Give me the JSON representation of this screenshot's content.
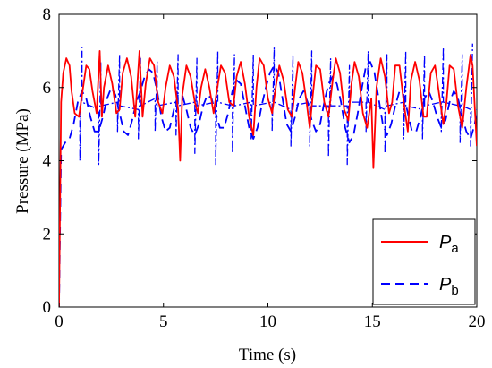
{
  "chart_data": {
    "type": "line",
    "xlabel": "Time (s)",
    "ylabel": "Pressure (MPa)",
    "xlim": [
      0,
      20
    ],
    "ylim": [
      0,
      8
    ],
    "xticks": [
      "0",
      "5",
      "10",
      "15",
      "20"
    ],
    "yticks": [
      "0",
      "2",
      "4",
      "6",
      "8"
    ],
    "grid": false,
    "legend_position": "bottom-right",
    "series": [
      {
        "name": "P",
        "subscript": "a",
        "color": "#ff0000",
        "style": "solid",
        "x": [
          0,
          0.1,
          0.2,
          0.35,
          0.5,
          0.6,
          0.75,
          0.95,
          1.15,
          1.3,
          1.45,
          1.6,
          1.8,
          1.95,
          2.05,
          2.15,
          2.35,
          2.55,
          2.75,
          2.9,
          3.05,
          3.25,
          3.45,
          3.65,
          3.85,
          4.0,
          4.15,
          4.35,
          4.55,
          4.75,
          4.95,
          5.1,
          5.3,
          5.5,
          5.7,
          5.8,
          5.9,
          6.1,
          6.3,
          6.5,
          6.65,
          6.8,
          7.0,
          7.2,
          7.4,
          7.55,
          7.75,
          7.95,
          8.15,
          8.35,
          8.5,
          8.7,
          8.9,
          9.1,
          9.3,
          9.45,
          9.6,
          9.8,
          10.0,
          10.2,
          10.4,
          10.55,
          10.75,
          10.95,
          11.15,
          11.3,
          11.45,
          11.65,
          11.85,
          12.0,
          12.15,
          12.3,
          12.5,
          12.7,
          12.9,
          13.1,
          13.25,
          13.45,
          13.65,
          13.85,
          14.0,
          14.15,
          14.35,
          14.55,
          14.75,
          14.95,
          15.05,
          15.2,
          15.4,
          15.6,
          15.8,
          15.95,
          16.1,
          16.3,
          16.5,
          16.7,
          16.85,
          17.05,
          17.25,
          17.45,
          17.6,
          17.8,
          18.0,
          18.2,
          18.4,
          18.55,
          18.7,
          18.9,
          19.1,
          19.3,
          19.5,
          19.7,
          19.8,
          20.0
        ],
        "values": [
          0,
          5.6,
          6.4,
          6.8,
          6.6,
          5.9,
          5.3,
          5.2,
          6.0,
          6.6,
          6.5,
          5.9,
          5.3,
          7.0,
          5.2,
          6.0,
          6.6,
          6.1,
          5.3,
          5.4,
          6.4,
          6.8,
          6.3,
          5.2,
          7.0,
          5.2,
          6.1,
          6.8,
          6.6,
          5.6,
          5.3,
          6.0,
          6.6,
          6.3,
          5.4,
          4.0,
          5.8,
          6.6,
          6.3,
          5.6,
          5.3,
          6.0,
          6.5,
          6.0,
          5.3,
          5.9,
          6.6,
          6.4,
          5.6,
          5.5,
          6.3,
          6.7,
          6.1,
          5.2,
          4.7,
          6.0,
          6.8,
          6.6,
          5.7,
          5.3,
          6.1,
          6.6,
          6.2,
          5.4,
          5.2,
          6.0,
          6.7,
          6.4,
          5.6,
          4.9,
          5.8,
          6.6,
          6.5,
          5.6,
          5.2,
          6.2,
          6.8,
          6.4,
          5.4,
          5.1,
          6.1,
          6.7,
          6.3,
          5.3,
          4.9,
          5.7,
          3.8,
          6.0,
          6.8,
          6.3,
          5.3,
          5.6,
          6.6,
          6.6,
          5.6,
          4.8,
          6.2,
          6.7,
          6.2,
          5.2,
          5.2,
          6.4,
          6.6,
          5.8,
          5.0,
          5.6,
          6.6,
          6.5,
          5.5,
          4.9,
          6.0,
          6.9,
          6.6,
          4.4
        ]
      },
      {
        "name": "P",
        "subscript": "b",
        "color": "#0000ff",
        "style": "dashed",
        "x": [
          0,
          0.1,
          0.3,
          0.5,
          0.7,
          0.9,
          1.1,
          1.3,
          1.5,
          1.7,
          1.9,
          2.1,
          2.3,
          2.5,
          2.7,
          2.9,
          3.1,
          3.3,
          3.5,
          3.7,
          3.9,
          4.1,
          4.3,
          4.5,
          4.7,
          4.9,
          5.1,
          5.3,
          5.5,
          5.7,
          5.9,
          6.1,
          6.3,
          6.5,
          6.7,
          6.9,
          7.1,
          7.3,
          7.5,
          7.7,
          7.9,
          8.1,
          8.3,
          8.5,
          8.7,
          8.9,
          9.1,
          9.3,
          9.5,
          9.7,
          9.9,
          10.1,
          10.3,
          10.5,
          10.7,
          10.9,
          11.1,
          11.3,
          11.5,
          11.7,
          11.9,
          12.1,
          12.3,
          12.5,
          12.7,
          12.9,
          13.1,
          13.3,
          13.5,
          13.7,
          13.9,
          14.1,
          14.3,
          14.5,
          14.7,
          14.9,
          15.1,
          15.3,
          15.5,
          15.7,
          15.9,
          16.1,
          16.3,
          16.5,
          16.7,
          16.9,
          17.1,
          17.3,
          17.5,
          17.7,
          17.9,
          18.1,
          18.3,
          18.5,
          18.7,
          18.9,
          19.1,
          19.3,
          19.5,
          19.7,
          19.9,
          20.0
        ],
        "values": [
          0,
          4.3,
          4.5,
          4.6,
          5.0,
          5.6,
          5.9,
          5.7,
          5.2,
          4.8,
          4.8,
          5.2,
          5.7,
          6.0,
          5.8,
          5.3,
          4.8,
          4.7,
          5.1,
          5.6,
          5.9,
          6.3,
          6.5,
          6.4,
          5.9,
          5.2,
          4.8,
          4.9,
          5.4,
          5.8,
          5.8,
          5.4,
          4.9,
          4.7,
          5.0,
          5.5,
          5.8,
          5.7,
          5.3,
          4.9,
          4.9,
          5.3,
          5.9,
          6.2,
          6.1,
          5.5,
          4.9,
          4.6,
          4.9,
          5.5,
          6.0,
          6.4,
          6.6,
          6.4,
          5.7,
          5.0,
          4.8,
          5.2,
          5.7,
          5.9,
          5.6,
          5.1,
          4.8,
          5.0,
          5.6,
          6.1,
          6.3,
          6.1,
          5.6,
          4.9,
          4.5,
          4.7,
          5.3,
          6.0,
          6.6,
          6.7,
          6.4,
          5.7,
          5.0,
          4.7,
          5.0,
          5.5,
          5.9,
          5.8,
          5.3,
          4.8,
          4.8,
          5.2,
          5.7,
          5.9,
          5.6,
          5.2,
          4.9,
          5.1,
          5.6,
          5.9,
          5.7,
          5.2,
          4.8,
          4.6,
          5.0,
          5.4
        ]
      },
      {
        "name": "",
        "color": "#0000ff",
        "style": "dashdot",
        "x": [
          1.0,
          1.0,
          1.1,
          1.1,
          1.9,
          1.9,
          2.0,
          2.0,
          2.8,
          2.8,
          2.9,
          2.9,
          3.8,
          3.8,
          3.9,
          3.9,
          4.6,
          4.6,
          4.7,
          4.7,
          5.6,
          5.6,
          5.7,
          5.7,
          6.5,
          6.5,
          6.6,
          6.6,
          7.5,
          7.5,
          7.6,
          7.6,
          8.3,
          8.3,
          8.4,
          8.4,
          9.2,
          9.2,
          9.3,
          9.3,
          10.2,
          10.2,
          10.3,
          10.3,
          11.1,
          11.1,
          11.2,
          11.2,
          12.0,
          12.0,
          12.1,
          12.1,
          12.9,
          12.9,
          13.0,
          13.0,
          13.8,
          13.8,
          13.9,
          13.9,
          14.7,
          14.7,
          14.8,
          14.8,
          15.6,
          15.6,
          15.7,
          15.7,
          16.5,
          16.5,
          16.6,
          16.6,
          17.4,
          17.4,
          17.5,
          17.5,
          18.3,
          18.3,
          18.4,
          18.4,
          19.2,
          19.2,
          19.3,
          19.3,
          19.7,
          19.7,
          19.8
        ],
        "values": [
          5.5,
          4.0,
          7.1,
          5.6,
          5.4,
          3.9,
          6.7,
          5.5,
          5.6,
          4.8,
          6.9,
          5.5,
          5.4,
          4.6,
          6.8,
          5.5,
          5.7,
          4.8,
          6.7,
          5.5,
          5.6,
          4.7,
          6.9,
          5.5,
          5.6,
          4.2,
          6.8,
          5.5,
          5.6,
          3.9,
          7.0,
          5.6,
          5.5,
          4.2,
          6.9,
          5.5,
          5.6,
          4.6,
          6.9,
          5.5,
          5.6,
          4.8,
          7.1,
          5.6,
          5.4,
          4.4,
          6.9,
          5.5,
          5.6,
          4.4,
          7.0,
          5.5,
          5.5,
          4.1,
          6.8,
          5.5,
          5.5,
          3.9,
          6.6,
          5.6,
          5.6,
          4.8,
          7.0,
          5.6,
          5.4,
          4.2,
          6.9,
          5.5,
          5.6,
          4.6,
          7.0,
          5.5,
          5.4,
          4.6,
          6.9,
          5.5,
          5.6,
          4.8,
          7.1,
          5.6,
          5.5,
          4.5,
          6.9,
          5.5,
          5.4,
          4.4,
          7.2
        ]
      }
    ]
  }
}
